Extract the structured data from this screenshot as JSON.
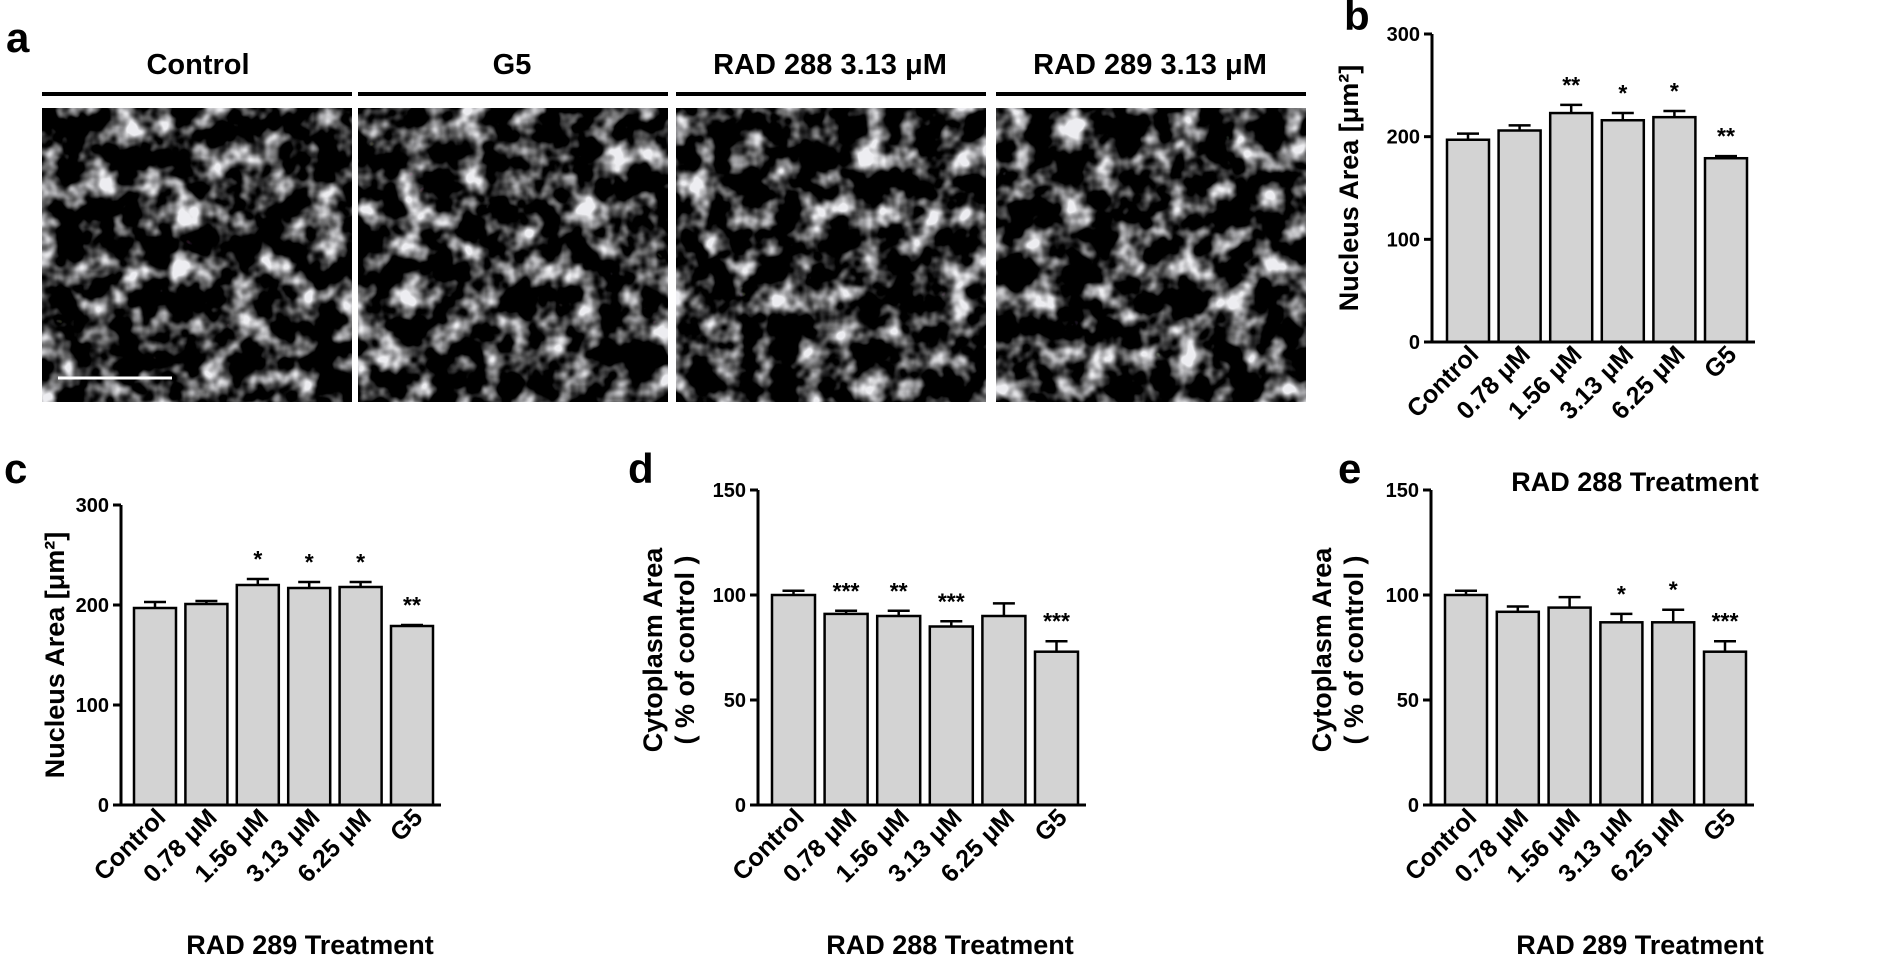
{
  "panel_a": {
    "label": "a",
    "images": [
      {
        "title": "Control",
        "bg": "#000000"
      },
      {
        "title": "G5",
        "bg": "#000000"
      },
      {
        "title": "RAD 288 3.13 μM",
        "bg": "#000000"
      },
      {
        "title": "RAD 289 3.13 μM",
        "bg": "#000000"
      }
    ]
  },
  "chart_data": [
    {
      "panel": "b",
      "type": "bar",
      "categories": [
        "Control",
        "0.78 μM",
        "1.56 μM",
        "3.13 μM",
        "6.25 μM",
        "G5"
      ],
      "values": [
        197,
        206,
        223,
        216,
        219,
        179
      ],
      "errors": [
        6,
        5,
        8,
        7,
        6,
        2
      ],
      "significance": [
        "",
        "",
        "**",
        "*",
        "*",
        "**"
      ],
      "ylabel": "Nucleus  Area [μm²]",
      "xlabel": "RAD 288 Treatment",
      "ylim": [
        0,
        300
      ],
      "yticks": [
        0,
        100,
        200,
        300
      ],
      "bar_color": "#d3d3d3"
    },
    {
      "panel": "c",
      "type": "bar",
      "categories": [
        "Control",
        "0.78 μM",
        "1.56 μM",
        "3.13 μM",
        "6.25 μM",
        "G5"
      ],
      "values": [
        197,
        201,
        220,
        217,
        218,
        179
      ],
      "errors": [
        6,
        3,
        6,
        6,
        5,
        1
      ],
      "significance": [
        "",
        "",
        "*",
        "*",
        "*",
        "**"
      ],
      "ylabel": "Nucleus  Area [μm²]",
      "xlabel": "RAD 289 Treatment",
      "ylim": [
        0,
        300
      ],
      "yticks": [
        0,
        100,
        200,
        300
      ],
      "bar_color": "#d3d3d3"
    },
    {
      "panel": "d",
      "type": "bar",
      "categories": [
        "Control",
        "0.78 μM",
        "1.56 μM",
        "3.13 μM",
        "6.25 μM",
        "G5"
      ],
      "values": [
        100,
        91,
        90,
        85,
        90,
        73
      ],
      "errors": [
        2,
        1.5,
        2.5,
        2.5,
        6,
        5
      ],
      "significance": [
        "",
        "***",
        "**",
        "***",
        "",
        "***"
      ],
      "ylabel": "Cytoplasm  Area",
      "ylabel2": "( % of control )",
      "xlabel": "RAD 288 Treatment",
      "ylim": [
        0,
        150
      ],
      "yticks": [
        0,
        50,
        100,
        150
      ],
      "bar_color": "#d3d3d3"
    },
    {
      "panel": "e",
      "type": "bar",
      "categories": [
        "Control",
        "0.78 μM",
        "1.56 μM",
        "3.13 μM",
        "6.25 μM",
        "G5"
      ],
      "values": [
        100,
        92,
        94,
        87,
        87,
        73
      ],
      "errors": [
        2,
        2.5,
        5,
        4,
        6,
        5
      ],
      "significance": [
        "",
        "",
        "",
        "*",
        "*",
        "***"
      ],
      "ylabel": "Cytoplasm  Area",
      "ylabel2": "( % of control )",
      "xlabel": "RAD 289 Treatment",
      "ylim": [
        0,
        150
      ],
      "yticks": [
        0,
        50,
        100,
        150
      ],
      "bar_color": "#d3d3d3"
    }
  ]
}
